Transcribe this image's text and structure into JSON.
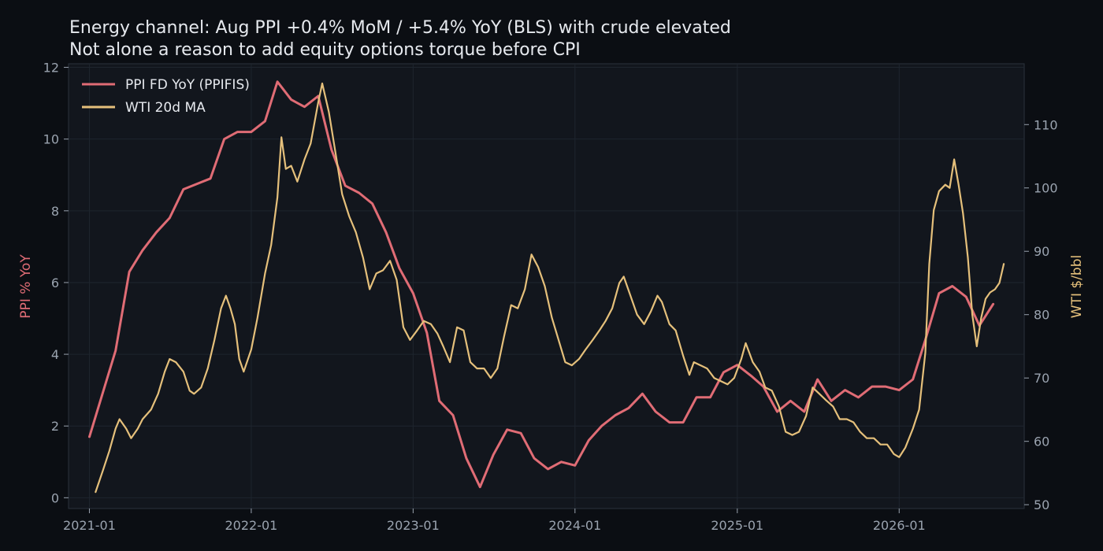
{
  "chart_data": {
    "type": "line",
    "title": "Energy channel: Aug PPI +0.4% MoM / +5.4% YoY (BLS) with crude elevated",
    "subtitle": "Not alone a reason to add equity options torque before CPI",
    "xlabel": "",
    "ylabel_left": "PPI % YoY",
    "ylabel_right": "WTI $/bbl",
    "x_ticks": [
      "2021-01",
      "2022-01",
      "2023-01",
      "2024-01",
      "2025-01",
      "2026-01"
    ],
    "ylim_left": [
      -0.3,
      12.1
    ],
    "ylim_right": [
      49.4,
      119.6
    ],
    "yticks_left": [
      0,
      2,
      4,
      6,
      8,
      10,
      12
    ],
    "yticks_right": [
      50,
      60,
      70,
      80,
      90,
      100,
      110
    ],
    "xlim": [
      "2020-11-15",
      "2026-10-10"
    ],
    "grid": true,
    "legend_position": "top-left",
    "colors": {
      "background": "#0b0e13",
      "plot_background": "#12161d",
      "ppi": "#e06c75",
      "wti": "#e5c07b",
      "ylabel_left": "#e06c75",
      "ylabel_right": "#e5c07b",
      "tick": "#9aa3af",
      "text": "#e6e9ee"
    },
    "series": [
      {
        "name": "PPI FD YoY (PPIFIS)",
        "axis": "left",
        "color": "#e06c75",
        "points": [
          [
            "2021-01-01",
            1.7
          ],
          [
            "2021-03-01",
            4.1
          ],
          [
            "2021-04-01",
            6.3
          ],
          [
            "2021-05-01",
            6.9
          ],
          [
            "2021-06-01",
            7.4
          ],
          [
            "2021-07-01",
            7.8
          ],
          [
            "2021-08-01",
            8.6
          ],
          [
            "2021-10-01",
            8.9
          ],
          [
            "2021-11-01",
            10.0
          ],
          [
            "2021-12-01",
            10.2
          ],
          [
            "2022-01-01",
            10.2
          ],
          [
            "2022-02-01",
            10.5
          ],
          [
            "2022-03-01",
            11.6
          ],
          [
            "2022-04-01",
            11.1
          ],
          [
            "2022-05-01",
            10.9
          ],
          [
            "2022-06-01",
            11.2
          ],
          [
            "2022-07-01",
            9.7
          ],
          [
            "2022-08-01",
            8.7
          ],
          [
            "2022-09-01",
            8.5
          ],
          [
            "2022-10-01",
            8.2
          ],
          [
            "2022-11-01",
            7.4
          ],
          [
            "2022-12-01",
            6.4
          ],
          [
            "2023-01-01",
            5.7
          ],
          [
            "2023-02-01",
            4.6
          ],
          [
            "2023-03-01",
            2.7
          ],
          [
            "2023-04-01",
            2.3
          ],
          [
            "2023-05-01",
            1.1
          ],
          [
            "2023-06-01",
            0.3
          ],
          [
            "2023-07-01",
            1.2
          ],
          [
            "2023-08-01",
            1.9
          ],
          [
            "2023-09-01",
            1.8
          ],
          [
            "2023-10-01",
            1.1
          ],
          [
            "2023-11-01",
            0.8
          ],
          [
            "2023-12-01",
            1.0
          ],
          [
            "2024-01-01",
            0.9
          ],
          [
            "2024-02-01",
            1.6
          ],
          [
            "2024-03-01",
            2.0
          ],
          [
            "2024-04-01",
            2.3
          ],
          [
            "2024-05-01",
            2.5
          ],
          [
            "2024-06-01",
            2.9
          ],
          [
            "2024-07-01",
            2.4
          ],
          [
            "2024-08-01",
            2.1
          ],
          [
            "2024-09-01",
            2.1
          ],
          [
            "2024-10-01",
            2.8
          ],
          [
            "2024-11-01",
            2.8
          ],
          [
            "2024-12-01",
            3.5
          ],
          [
            "2025-01-01",
            3.7
          ],
          [
            "2025-02-01",
            3.4
          ],
          [
            "2025-03-01",
            3.1
          ],
          [
            "2025-04-01",
            2.4
          ],
          [
            "2025-05-01",
            2.7
          ],
          [
            "2025-06-01",
            2.4
          ],
          [
            "2025-07-01",
            3.3
          ],
          [
            "2025-08-01",
            2.7
          ],
          [
            "2025-09-01",
            3.0
          ],
          [
            "2025-10-01",
            2.8
          ],
          [
            "2025-11-01",
            3.1
          ],
          [
            "2025-12-01",
            3.1
          ],
          [
            "2026-01-01",
            3.0
          ],
          [
            "2026-02-01",
            3.3
          ],
          [
            "2026-03-01",
            4.4
          ],
          [
            "2026-04-01",
            5.7
          ],
          [
            "2026-05-01",
            5.9
          ],
          [
            "2026-06-01",
            5.6
          ],
          [
            "2026-07-01",
            4.8
          ],
          [
            "2026-08-01",
            5.4
          ]
        ]
      },
      {
        "name": "WTI 20d MA",
        "axis": "right",
        "color": "#e5c07b",
        "points": [
          [
            "2021-01-15",
            52.0
          ],
          [
            "2021-02-01",
            55.5
          ],
          [
            "2021-02-15",
            58.5
          ],
          [
            "2021-03-01",
            62.0
          ],
          [
            "2021-03-10",
            63.5
          ],
          [
            "2021-03-25",
            62.0
          ],
          [
            "2021-04-05",
            60.5
          ],
          [
            "2021-04-20",
            62.0
          ],
          [
            "2021-05-01",
            63.5
          ],
          [
            "2021-05-20",
            65.0
          ],
          [
            "2021-06-05",
            67.5
          ],
          [
            "2021-06-20",
            71.0
          ],
          [
            "2021-07-01",
            73.0
          ],
          [
            "2021-07-15",
            72.5
          ],
          [
            "2021-08-01",
            71.0
          ],
          [
            "2021-08-15",
            68.0
          ],
          [
            "2021-08-25",
            67.5
          ],
          [
            "2021-09-10",
            68.5
          ],
          [
            "2021-09-25",
            71.5
          ],
          [
            "2021-10-10",
            76.0
          ],
          [
            "2021-10-25",
            81.0
          ],
          [
            "2021-11-05",
            83.0
          ],
          [
            "2021-11-15",
            81.0
          ],
          [
            "2021-11-25",
            78.5
          ],
          [
            "2021-12-05",
            73.0
          ],
          [
            "2021-12-15",
            71.0
          ],
          [
            "2022-01-01",
            74.5
          ],
          [
            "2022-01-15",
            79.5
          ],
          [
            "2022-02-01",
            86.5
          ],
          [
            "2022-02-15",
            91.0
          ],
          [
            "2022-03-01",
            98.5
          ],
          [
            "2022-03-10",
            108.0
          ],
          [
            "2022-03-20",
            103.0
          ],
          [
            "2022-04-01",
            103.5
          ],
          [
            "2022-04-15",
            101.0
          ],
          [
            "2022-05-01",
            104.5
          ],
          [
            "2022-05-15",
            107.0
          ],
          [
            "2022-06-01",
            113.5
          ],
          [
            "2022-06-10",
            116.5
          ],
          [
            "2022-06-25",
            112.0
          ],
          [
            "2022-07-10",
            105.5
          ],
          [
            "2022-07-25",
            99.0
          ],
          [
            "2022-08-10",
            95.5
          ],
          [
            "2022-08-25",
            93.0
          ],
          [
            "2022-09-10",
            89.0
          ],
          [
            "2022-09-25",
            84.0
          ],
          [
            "2022-10-10",
            86.5
          ],
          [
            "2022-10-25",
            87.0
          ],
          [
            "2022-11-10",
            88.5
          ],
          [
            "2022-11-25",
            85.5
          ],
          [
            "2022-12-10",
            78.0
          ],
          [
            "2022-12-25",
            76.0
          ],
          [
            "2023-01-10",
            77.5
          ],
          [
            "2023-01-25",
            79.0
          ],
          [
            "2023-02-10",
            78.5
          ],
          [
            "2023-02-25",
            77.0
          ],
          [
            "2023-03-10",
            75.0
          ],
          [
            "2023-03-25",
            72.5
          ],
          [
            "2023-04-10",
            78.0
          ],
          [
            "2023-04-25",
            77.5
          ],
          [
            "2023-05-10",
            72.5
          ],
          [
            "2023-05-25",
            71.5
          ],
          [
            "2023-06-10",
            71.5
          ],
          [
            "2023-06-25",
            70.0
          ],
          [
            "2023-07-10",
            71.5
          ],
          [
            "2023-07-25",
            76.5
          ],
          [
            "2023-08-10",
            81.5
          ],
          [
            "2023-08-25",
            81.0
          ],
          [
            "2023-09-10",
            84.0
          ],
          [
            "2023-09-25",
            89.5
          ],
          [
            "2023-10-10",
            87.5
          ],
          [
            "2023-10-25",
            84.5
          ],
          [
            "2023-11-10",
            79.5
          ],
          [
            "2023-11-25",
            76.0
          ],
          [
            "2023-12-10",
            72.5
          ],
          [
            "2023-12-25",
            72.0
          ],
          [
            "2024-01-10",
            73.0
          ],
          [
            "2024-01-25",
            74.5
          ],
          [
            "2024-02-10",
            76.0
          ],
          [
            "2024-02-25",
            77.5
          ],
          [
            "2024-03-10",
            79.0
          ],
          [
            "2024-03-25",
            81.0
          ],
          [
            "2024-04-10",
            85.0
          ],
          [
            "2024-04-20",
            86.0
          ],
          [
            "2024-05-05",
            83.0
          ],
          [
            "2024-05-20",
            80.0
          ],
          [
            "2024-06-05",
            78.5
          ],
          [
            "2024-06-20",
            80.5
          ],
          [
            "2024-07-05",
            83.0
          ],
          [
            "2024-07-15",
            82.0
          ],
          [
            "2024-08-01",
            78.5
          ],
          [
            "2024-08-15",
            77.5
          ],
          [
            "2024-09-01",
            73.5
          ],
          [
            "2024-09-15",
            70.5
          ],
          [
            "2024-09-25",
            72.5
          ],
          [
            "2024-10-10",
            72.0
          ],
          [
            "2024-10-25",
            71.5
          ],
          [
            "2024-11-10",
            70.0
          ],
          [
            "2024-11-25",
            69.5
          ],
          [
            "2024-12-10",
            69.0
          ],
          [
            "2024-12-25",
            70.0
          ],
          [
            "2025-01-10",
            73.0
          ],
          [
            "2025-01-20",
            75.5
          ],
          [
            "2025-02-05",
            72.5
          ],
          [
            "2025-02-20",
            71.0
          ],
          [
            "2025-03-05",
            68.5
          ],
          [
            "2025-03-20",
            68.0
          ],
          [
            "2025-04-05",
            65.5
          ],
          [
            "2025-04-20",
            61.5
          ],
          [
            "2025-05-05",
            61.0
          ],
          [
            "2025-05-20",
            61.5
          ],
          [
            "2025-06-05",
            64.0
          ],
          [
            "2025-06-20",
            68.5
          ],
          [
            "2025-07-05",
            67.5
          ],
          [
            "2025-07-20",
            66.5
          ],
          [
            "2025-08-05",
            65.5
          ],
          [
            "2025-08-20",
            63.5
          ],
          [
            "2025-09-05",
            63.5
          ],
          [
            "2025-09-20",
            63.0
          ],
          [
            "2025-10-05",
            61.5
          ],
          [
            "2025-10-20",
            60.5
          ],
          [
            "2025-11-05",
            60.5
          ],
          [
            "2025-11-20",
            59.5
          ],
          [
            "2025-12-05",
            59.5
          ],
          [
            "2025-12-20",
            58.0
          ],
          [
            "2026-01-01",
            57.5
          ],
          [
            "2026-01-15",
            59.0
          ],
          [
            "2026-02-01",
            62.0
          ],
          [
            "2026-02-15",
            65.0
          ],
          [
            "2026-03-01",
            74.0
          ],
          [
            "2026-03-10",
            88.0
          ],
          [
            "2026-03-20",
            96.5
          ],
          [
            "2026-04-01",
            99.5
          ],
          [
            "2026-04-15",
            100.5
          ],
          [
            "2026-04-25",
            100.0
          ],
          [
            "2026-05-05",
            104.5
          ],
          [
            "2026-05-15",
            100.5
          ],
          [
            "2026-05-25",
            96.0
          ],
          [
            "2026-06-05",
            89.0
          ],
          [
            "2026-06-15",
            80.0
          ],
          [
            "2026-06-25",
            75.0
          ],
          [
            "2026-07-05",
            79.5
          ],
          [
            "2026-07-15",
            82.5
          ],
          [
            "2026-07-25",
            83.5
          ],
          [
            "2026-08-05",
            84.0
          ],
          [
            "2026-08-15",
            85.0
          ],
          [
            "2026-08-25",
            88.0
          ]
        ]
      }
    ]
  }
}
